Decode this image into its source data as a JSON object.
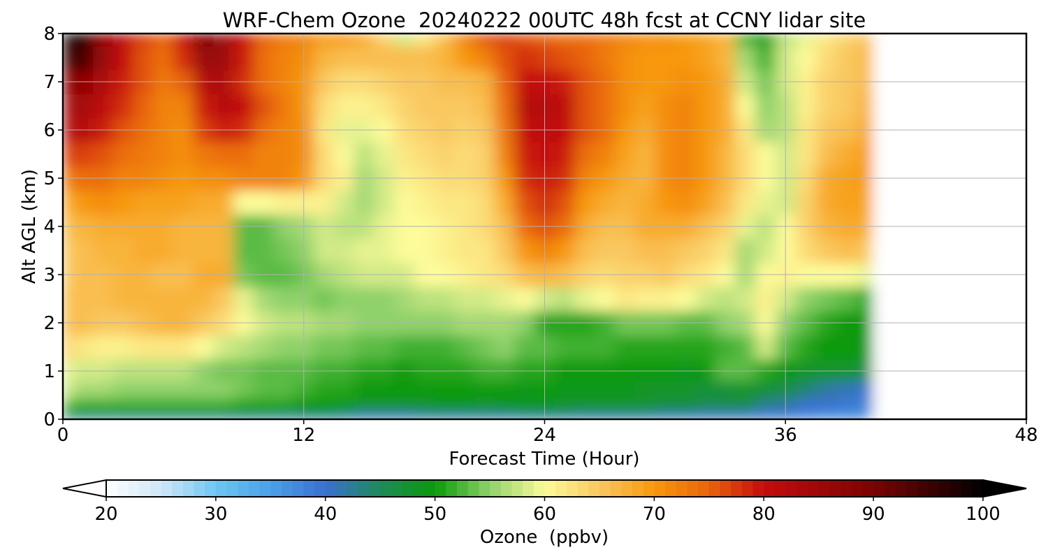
{
  "chart_data": {
    "type": "heatmap",
    "title": "WRF-Chem Ozone  20240222 00UTC 48h fcst at CCNY lidar site",
    "xlabel": "Forecast Time (Hour)",
    "ylabel": "Alt AGL (km)",
    "xlim": [
      0,
      48
    ],
    "ylim": [
      0,
      8
    ],
    "x_ticks": [
      0,
      12,
      24,
      36,
      48
    ],
    "y_ticks": [
      0,
      1,
      2,
      3,
      4,
      5,
      6,
      7,
      8
    ],
    "grid": true,
    "data_extent_hours": 40.5,
    "colorbar": {
      "label": "Ozone  (ppbv)",
      "min": 20,
      "max": 100,
      "ticks": [
        20,
        30,
        40,
        50,
        60,
        70,
        80,
        90,
        100
      ],
      "extend": "both",
      "colors": {
        "20": "#ffffff",
        "25": "#cfe7f7",
        "30": "#6ec6f2",
        "35": "#4aa0e6",
        "40": "#3a6fd0",
        "45": "#1e8a5a",
        "50": "#0a9a0a",
        "55": "#8fd16a",
        "60": "#fdfb9a",
        "65": "#f9c860",
        "70": "#f7980c",
        "75": "#e8640c",
        "80": "#c40c0c",
        "90": "#7a0404",
        "100": "#000000"
      }
    },
    "x": [
      0,
      1,
      2,
      3,
      4,
      5,
      6,
      7,
      8,
      9,
      10,
      11,
      12,
      13,
      14,
      15,
      16,
      17,
      18,
      19,
      20,
      21,
      22,
      23,
      24,
      25,
      26,
      27,
      28,
      29,
      30,
      31,
      32,
      33,
      34,
      35,
      36,
      37,
      38,
      39,
      40.3
    ],
    "y": [
      0,
      0.1,
      0.3,
      0.6,
      1,
      1.5,
      2,
      2.5,
      3,
      3.5,
      4,
      4.5,
      5,
      5.5,
      6,
      6.5,
      7,
      7.5,
      8
    ],
    "z_rows_by_altitude": [
      [
        42,
        40,
        40,
        40,
        40,
        40,
        40,
        40,
        40,
        40,
        40,
        40,
        40,
        40,
        40,
        40,
        40,
        40,
        40,
        40,
        40,
        40,
        40,
        40,
        40,
        40,
        40,
        40,
        40,
        40,
        40,
        40,
        40,
        40,
        40,
        40,
        40,
        38,
        37,
        37,
        37
      ],
      [
        47,
        46,
        46,
        46,
        46,
        46,
        46,
        46,
        46,
        46,
        46,
        45,
        45,
        45,
        44,
        42,
        42,
        42,
        43,
        43,
        43,
        43,
        43,
        44,
        44,
        44,
        43,
        43,
        43,
        43,
        42,
        42,
        41,
        41,
        41,
        39,
        39,
        38,
        37,
        37,
        37
      ],
      [
        53,
        52,
        52,
        52,
        52,
        52,
        52,
        52,
        52,
        51,
        51,
        51,
        50,
        50,
        50,
        48,
        48,
        48,
        48,
        49,
        49,
        48,
        49,
        49,
        49,
        48,
        48,
        48,
        48,
        48,
        47,
        47,
        46,
        46,
        46,
        43,
        42,
        40,
        40,
        39,
        38
      ],
      [
        58,
        56,
        56,
        55,
        55,
        55,
        55,
        55,
        55,
        54,
        53,
        53,
        52,
        51,
        51,
        50,
        50,
        50,
        50,
        50,
        50,
        50,
        50,
        49,
        50,
        49,
        49,
        49,
        49,
        48,
        48,
        48,
        47,
        47,
        48,
        47,
        46,
        44,
        42,
        41,
        40
      ],
      [
        59,
        58,
        58,
        57,
        57,
        57,
        57,
        55,
        54,
        54,
        53,
        53,
        53,
        52,
        52,
        51,
        51,
        50,
        51,
        51,
        51,
        52,
        52,
        51,
        51,
        50,
        50,
        50,
        50,
        50,
        50,
        49,
        50,
        53,
        53,
        51,
        50,
        48,
        48,
        48,
        46
      ],
      [
        64,
        62,
        61,
        61,
        62,
        62,
        62,
        60,
        58,
        57,
        56,
        55,
        55,
        54,
        54,
        53,
        53,
        52,
        52,
        52,
        53,
        54,
        55,
        53,
        53,
        52,
        52,
        52,
        51,
        51,
        51,
        51,
        51,
        52,
        53,
        58,
        53,
        51,
        50,
        50,
        49
      ],
      [
        66,
        66,
        65,
        65,
        66,
        67,
        67,
        65,
        63,
        60,
        58,
        57,
        57,
        56,
        56,
        55,
        55,
        55,
        55,
        55,
        56,
        56,
        56,
        55,
        51,
        51,
        51,
        52,
        54,
        54,
        54,
        53,
        53,
        55,
        56,
        60,
        55,
        53,
        51,
        50,
        50
      ],
      [
        66,
        66,
        66,
        67,
        67,
        67,
        67,
        67,
        65,
        59,
        56,
        55,
        55,
        54,
        55,
        55,
        55,
        56,
        57,
        57,
        58,
        58,
        59,
        60,
        58,
        57,
        59,
        60,
        62,
        61,
        61,
        60,
        58,
        57,
        58,
        61,
        58,
        55,
        54,
        53,
        51
      ],
      [
        65,
        66,
        66,
        67,
        67,
        66,
        66,
        68,
        68,
        54,
        53,
        53,
        54,
        56,
        57,
        58,
        58,
        58,
        60,
        60,
        61,
        62,
        63,
        66,
        67,
        66,
        64,
        63,
        64,
        64,
        65,
        63,
        62,
        60,
        56,
        60,
        61,
        60,
        60,
        60,
        59
      ],
      [
        65,
        66,
        67,
        67,
        68,
        68,
        67,
        67,
        67,
        53,
        53,
        54,
        55,
        58,
        58,
        59,
        59,
        60,
        60,
        61,
        62,
        62,
        65,
        70,
        72,
        70,
        66,
        65,
        65,
        66,
        66,
        65,
        64,
        62,
        56,
        58,
        60,
        63,
        65,
        66,
        65
      ],
      [
        66,
        67,
        68,
        68,
        68,
        68,
        67,
        67,
        67,
        53,
        53,
        55,
        56,
        58,
        57,
        57,
        59,
        60,
        60,
        61,
        62,
        63,
        66,
        74,
        76,
        74,
        68,
        66,
        66,
        68,
        68,
        68,
        66,
        64,
        59,
        57,
        60,
        64,
        67,
        68,
        68
      ],
      [
        68,
        70,
        71,
        70,
        69,
        69,
        69,
        68,
        68,
        60,
        60,
        61,
        61,
        61,
        58,
        56,
        58,
        60,
        61,
        62,
        62,
        63,
        68,
        76,
        78,
        76,
        70,
        68,
        67,
        68,
        70,
        71,
        69,
        66,
        62,
        59,
        58,
        64,
        68,
        69,
        69
      ],
      [
        73,
        74,
        74,
        72,
        72,
        71,
        70,
        71,
        71,
        72,
        72,
        72,
        70,
        63,
        61,
        56,
        58,
        61,
        62,
        63,
        63,
        64,
        70,
        78,
        79,
        78,
        72,
        70,
        68,
        67,
        71,
        72,
        70,
        67,
        63,
        60,
        58,
        63,
        68,
        69,
        70
      ],
      [
        77,
        77,
        76,
        74,
        73,
        72,
        71,
        73,
        74,
        74,
        72,
        72,
        71,
        63,
        60,
        57,
        59,
        62,
        63,
        64,
        63,
        64,
        72,
        79,
        80,
        79,
        74,
        72,
        69,
        67,
        71,
        72,
        70,
        67,
        63,
        60,
        58,
        62,
        66,
        68,
        70
      ],
      [
        82,
        82,
        79,
        76,
        74,
        72,
        71,
        77,
        79,
        78,
        74,
        72,
        71,
        62,
        59,
        59,
        60,
        63,
        64,
        65,
        64,
        65,
        73,
        80,
        81,
        80,
        76,
        74,
        70,
        68,
        71,
        72,
        70,
        68,
        62,
        56,
        57,
        62,
        65,
        66,
        69
      ],
      [
        84,
        84,
        81,
        78,
        75,
        72,
        72,
        79,
        82,
        80,
        76,
        73,
        70,
        63,
        61,
        61,
        62,
        64,
        65,
        65,
        65,
        66,
        74,
        82,
        82,
        81,
        76,
        74,
        71,
        69,
        71,
        72,
        70,
        68,
        60,
        55,
        57,
        61,
        64,
        65,
        68
      ],
      [
        88,
        87,
        83,
        79,
        76,
        73,
        75,
        82,
        83,
        78,
        74,
        72,
        70,
        65,
        63,
        63,
        64,
        65,
        65,
        66,
        66,
        67,
        75,
        80,
        80,
        79,
        76,
        74,
        71,
        70,
        70,
        71,
        70,
        68,
        58,
        54,
        58,
        61,
        64,
        65,
        67
      ],
      [
        96,
        94,
        86,
        80,
        76,
        74,
        78,
        86,
        85,
        79,
        74,
        72,
        71,
        67,
        66,
        66,
        66,
        66,
        66,
        67,
        70,
        72,
        76,
        78,
        77,
        76,
        75,
        73,
        71,
        70,
        70,
        70,
        69,
        67,
        56,
        52,
        58,
        60,
        63,
        65,
        67
      ],
      [
        100,
        98,
        87,
        81,
        77,
        75,
        80,
        90,
        86,
        80,
        75,
        73,
        72,
        70,
        70,
        68,
        64,
        58,
        62,
        66,
        72,
        76,
        77,
        76,
        75,
        74,
        74,
        73,
        72,
        71,
        71,
        70,
        69,
        67,
        52,
        50,
        57,
        59,
        62,
        64,
        66
      ]
    ]
  }
}
